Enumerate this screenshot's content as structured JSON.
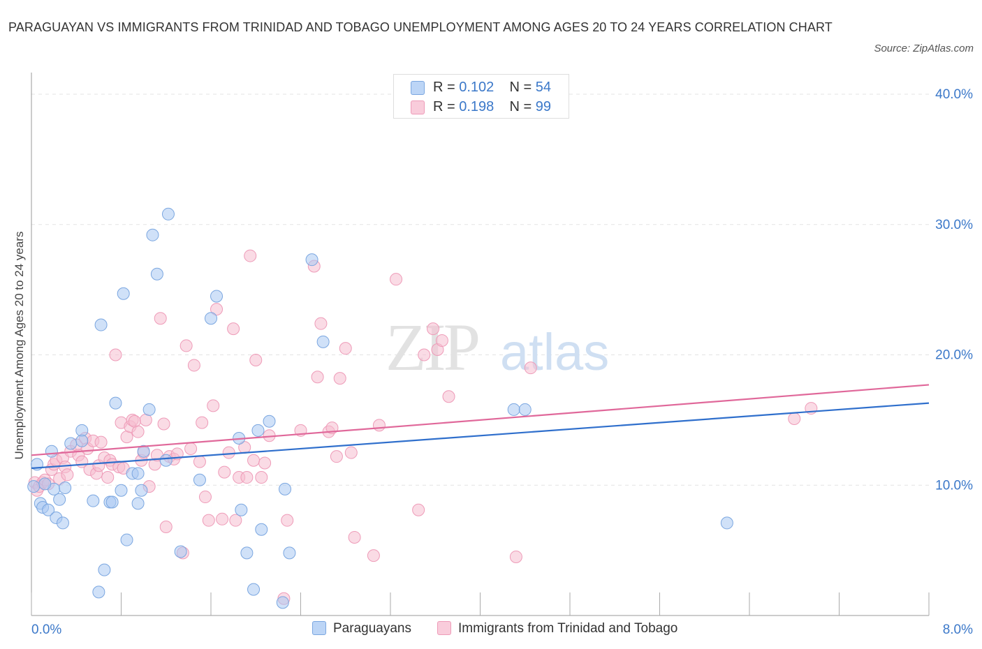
{
  "title": "PARAGUAYAN VS IMMIGRANTS FROM TRINIDAD AND TOBAGO UNEMPLOYMENT AMONG AGES 20 TO 24 YEARS CORRELATION CHART",
  "source": "Source: ZipAtlas.com",
  "watermark": {
    "zip": "ZIP",
    "atlas": "atlas"
  },
  "colors": {
    "blue_fill": "#a9c8f2",
    "blue_edge": "#7aa6e0",
    "blue_line": "#2f6fcc",
    "pink_fill": "#f6bdd0",
    "pink_edge": "#ee9bb8",
    "pink_line": "#e0689a",
    "axis_text": "#3b78c9",
    "grid": "#e3e3e3"
  },
  "legend_top": {
    "rows": [
      {
        "series": "blue",
        "r_label": "R =",
        "r_value": "0.102",
        "n_label": "N =",
        "n_value": "54"
      },
      {
        "series": "pink",
        "r_label": "R =",
        "r_value": "0.198",
        "n_label": "N =",
        "n_value": "99"
      }
    ]
  },
  "legend_bottom": [
    {
      "series": "blue",
      "label": "Paraguayans"
    },
    {
      "series": "pink",
      "label": "Immigrants from Trinidad and Tobago"
    }
  ],
  "chart_data": {
    "type": "scatter",
    "title": "PARAGUAYAN VS IMMIGRANTS FROM TRINIDAD AND TOBAGO UNEMPLOYMENT AMONG AGES 20 TO 24 YEARS CORRELATION CHART",
    "xlabel": "",
    "ylabel": "Unemployment Among Ages 20 to 24 years",
    "xlim": [
      0,
      8
    ],
    "ylim": [
      0,
      40
    ],
    "x_tick_labels": [
      {
        "value": 0,
        "label": "0.0%"
      },
      {
        "value": 8,
        "label": "8.0%"
      }
    ],
    "y_tick_labels": [
      {
        "value": 10,
        "label": "10.0%"
      },
      {
        "value": 20,
        "label": "20.0%"
      },
      {
        "value": 30,
        "label": "30.0%"
      },
      {
        "value": 40,
        "label": "40.0%"
      }
    ],
    "y_gridlines": [
      10,
      20,
      30,
      40
    ],
    "legend": "top-center",
    "series": [
      {
        "name": "Paraguayans",
        "color": "blue",
        "R": 0.102,
        "N": 54,
        "trend": {
          "x0": 0,
          "y0": 11.3,
          "x1": 8,
          "y1": 16.3
        },
        "points": [
          [
            0.05,
            11.6
          ],
          [
            0.08,
            8.6
          ],
          [
            0.1,
            8.3
          ],
          [
            0.15,
            8.1
          ],
          [
            0.18,
            12.6
          ],
          [
            0.2,
            9.7
          ],
          [
            0.22,
            7.5
          ],
          [
            0.25,
            8.9
          ],
          [
            0.28,
            7.1
          ],
          [
            0.3,
            9.8
          ],
          [
            0.45,
            14.2
          ],
          [
            0.45,
            13.4
          ],
          [
            0.55,
            8.8
          ],
          [
            0.62,
            22.3
          ],
          [
            0.65,
            3.5
          ],
          [
            0.7,
            8.7
          ],
          [
            0.72,
            8.7
          ],
          [
            0.75,
            16.3
          ],
          [
            0.8,
            9.6
          ],
          [
            0.82,
            24.7
          ],
          [
            0.85,
            5.8
          ],
          [
            0.9,
            10.9
          ],
          [
            0.95,
            10.9
          ],
          [
            0.95,
            8.6
          ],
          [
            0.98,
            9.6
          ],
          [
            1.0,
            12.6
          ],
          [
            1.05,
            15.8
          ],
          [
            1.08,
            29.2
          ],
          [
            1.12,
            26.2
          ],
          [
            1.2,
            11.9
          ],
          [
            1.22,
            30.8
          ],
          [
            1.33,
            4.9
          ],
          [
            1.5,
            10.4
          ],
          [
            1.6,
            22.8
          ],
          [
            1.65,
            24.5
          ],
          [
            1.85,
            13.6
          ],
          [
            1.87,
            8.1
          ],
          [
            1.92,
            4.8
          ],
          [
            1.98,
            2.0
          ],
          [
            2.02,
            14.2
          ],
          [
            2.05,
            6.6
          ],
          [
            2.12,
            14.9
          ],
          [
            2.24,
            1.0
          ],
          [
            2.26,
            9.7
          ],
          [
            2.3,
            4.8
          ],
          [
            2.5,
            27.3
          ],
          [
            2.6,
            21.0
          ],
          [
            4.3,
            15.8
          ],
          [
            4.4,
            15.8
          ],
          [
            6.2,
            7.1
          ],
          [
            0.02,
            9.9
          ],
          [
            0.35,
            13.2
          ],
          [
            0.6,
            1.8
          ],
          [
            0.12,
            10.1
          ]
        ]
      },
      {
        "name": "Immigrants from Trinidad and Tobago",
        "color": "pink",
        "R": 0.198,
        "N": 99,
        "trend": {
          "x0": 0,
          "y0": 12.3,
          "x1": 8,
          "y1": 17.7
        },
        "points": [
          [
            0.03,
            10.2
          ],
          [
            0.05,
            9.6
          ],
          [
            0.07,
            9.9
          ],
          [
            0.1,
            10.2
          ],
          [
            0.12,
            10.4
          ],
          [
            0.15,
            10.1
          ],
          [
            0.18,
            11.2
          ],
          [
            0.2,
            11.6
          ],
          [
            0.22,
            11.9
          ],
          [
            0.25,
            10.5
          ],
          [
            0.28,
            12.1
          ],
          [
            0.3,
            11.4
          ],
          [
            0.32,
            10.8
          ],
          [
            0.35,
            12.6
          ],
          [
            0.4,
            13.1
          ],
          [
            0.42,
            12.3
          ],
          [
            0.45,
            11.8
          ],
          [
            0.48,
            13.6
          ],
          [
            0.5,
            12.8
          ],
          [
            0.52,
            11.2
          ],
          [
            0.55,
            13.4
          ],
          [
            0.58,
            10.9
          ],
          [
            0.6,
            11.5
          ],
          [
            0.62,
            13.3
          ],
          [
            0.65,
            12.1
          ],
          [
            0.68,
            10.6
          ],
          [
            0.7,
            11.9
          ],
          [
            0.72,
            11.6
          ],
          [
            0.75,
            20.0
          ],
          [
            0.78,
            11.4
          ],
          [
            0.8,
            14.8
          ],
          [
            0.82,
            11.3
          ],
          [
            0.85,
            13.7
          ],
          [
            0.88,
            14.5
          ],
          [
            0.9,
            15.0
          ],
          [
            0.92,
            14.9
          ],
          [
            0.95,
            14.1
          ],
          [
            0.98,
            11.9
          ],
          [
            1.0,
            12.5
          ],
          [
            1.02,
            15.0
          ],
          [
            1.05,
            9.9
          ],
          [
            1.1,
            11.6
          ],
          [
            1.12,
            12.3
          ],
          [
            1.15,
            22.8
          ],
          [
            1.18,
            14.7
          ],
          [
            1.2,
            6.8
          ],
          [
            1.23,
            12.2
          ],
          [
            1.27,
            12.0
          ],
          [
            1.3,
            12.4
          ],
          [
            1.35,
            4.8
          ],
          [
            1.38,
            20.7
          ],
          [
            1.42,
            12.8
          ],
          [
            1.45,
            19.2
          ],
          [
            1.5,
            11.8
          ],
          [
            1.52,
            14.8
          ],
          [
            1.55,
            9.1
          ],
          [
            1.58,
            7.3
          ],
          [
            1.62,
            16.1
          ],
          [
            1.65,
            23.5
          ],
          [
            1.7,
            7.4
          ],
          [
            1.72,
            11.0
          ],
          [
            1.76,
            12.5
          ],
          [
            1.8,
            22.0
          ],
          [
            1.82,
            7.3
          ],
          [
            1.85,
            10.6
          ],
          [
            1.9,
            12.9
          ],
          [
            1.92,
            10.6
          ],
          [
            1.95,
            27.6
          ],
          [
            1.98,
            11.9
          ],
          [
            2.0,
            19.6
          ],
          [
            2.05,
            10.6
          ],
          [
            2.08,
            11.7
          ],
          [
            2.12,
            13.8
          ],
          [
            2.25,
            1.3
          ],
          [
            2.28,
            7.3
          ],
          [
            2.4,
            14.2
          ],
          [
            2.52,
            26.8
          ],
          [
            2.55,
            18.3
          ],
          [
            2.58,
            22.4
          ],
          [
            2.65,
            14.1
          ],
          [
            2.68,
            14.4
          ],
          [
            2.72,
            12.2
          ],
          [
            2.75,
            18.2
          ],
          [
            2.8,
            20.5
          ],
          [
            2.85,
            12.5
          ],
          [
            2.88,
            6.0
          ],
          [
            3.05,
            4.6
          ],
          [
            3.1,
            14.6
          ],
          [
            3.25,
            25.8
          ],
          [
            3.45,
            8.1
          ],
          [
            3.5,
            20.0
          ],
          [
            3.58,
            22.0
          ],
          [
            3.62,
            20.4
          ],
          [
            3.66,
            21.1
          ],
          [
            3.72,
            16.8
          ],
          [
            4.45,
            19.0
          ],
          [
            4.32,
            4.5
          ],
          [
            6.8,
            15.1
          ],
          [
            6.95,
            15.9
          ]
        ]
      }
    ]
  }
}
